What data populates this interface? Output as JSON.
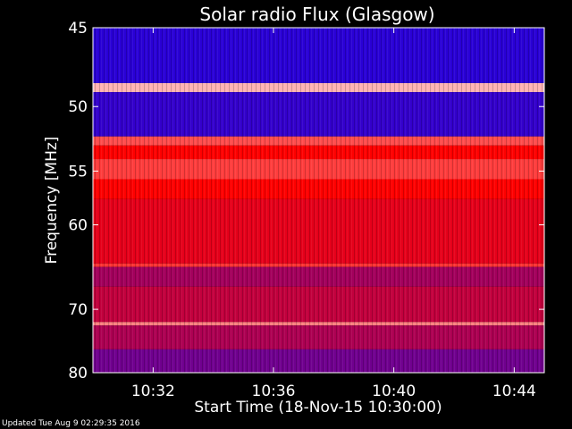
{
  "chart_data": {
    "type": "heatmap",
    "title": "Solar radio Flux (Glasgow)",
    "xlabel": "Start Time (18-Nov-15 10:30:00)",
    "ylabel": "Frequency [MHz]",
    "x_ticks": [
      "10:32",
      "10:36",
      "10:40",
      "10:44"
    ],
    "x_tick_minutes": [
      2,
      6,
      10,
      14
    ],
    "xlim_minutes": [
      0,
      15
    ],
    "y_ticks": [
      45,
      50,
      55,
      60,
      70,
      80
    ],
    "ylim_mhz": [
      45,
      80
    ],
    "y_scale": "reciprocal",
    "colormap": [
      "#0000ff",
      "#ff0000",
      "#ffffff"
    ],
    "bands": [
      {
        "from_mhz": 45.0,
        "to_mhz": 48.4,
        "level": 0.08
      },
      {
        "from_mhz": 48.4,
        "to_mhz": 49.0,
        "level": 0.85
      },
      {
        "from_mhz": 49.0,
        "to_mhz": 52.2,
        "level": 0.1
      },
      {
        "from_mhz": 52.2,
        "to_mhz": 52.9,
        "level": 0.65
      },
      {
        "from_mhz": 52.9,
        "to_mhz": 54.0,
        "level": 0.5
      },
      {
        "from_mhz": 54.0,
        "to_mhz": 55.7,
        "level": 0.62
      },
      {
        "from_mhz": 55.7,
        "to_mhz": 57.5,
        "level": 0.5
      },
      {
        "from_mhz": 57.5,
        "to_mhz": 64.2,
        "level": 0.45
      },
      {
        "from_mhz": 64.2,
        "to_mhz": 64.6,
        "level": 0.6
      },
      {
        "from_mhz": 64.6,
        "to_mhz": 67.0,
        "level": 0.32
      },
      {
        "from_mhz": 67.0,
        "to_mhz": 71.8,
        "level": 0.38
      },
      {
        "from_mhz": 71.8,
        "to_mhz": 72.3,
        "level": 0.75
      },
      {
        "from_mhz": 72.3,
        "to_mhz": 76.0,
        "level": 0.34
      },
      {
        "from_mhz": 76.0,
        "to_mhz": 80.0,
        "level": 0.22
      }
    ]
  },
  "footer": {
    "updated": "Updated Tue Aug  9 02:29:35 2016"
  }
}
